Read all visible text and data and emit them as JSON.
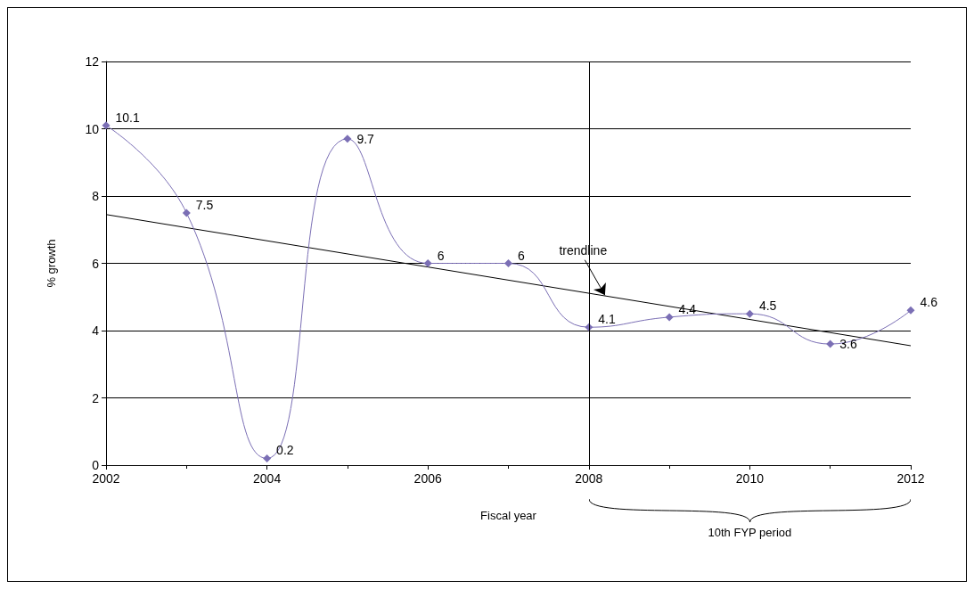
{
  "chart_data": {
    "type": "line",
    "xlabel": "Fiscal year",
    "ylabel": "% growth",
    "x": [
      2002,
      2003,
      2004,
      2005,
      2006,
      2007,
      2008,
      2009,
      2010,
      2011,
      2012
    ],
    "series": [
      {
        "color": "#7b6fb5",
        "values": [
          10.1,
          7.5,
          0.2,
          9.7,
          6,
          6,
          4.1,
          4.4,
          4.5,
          3.6,
          4.6
        ],
        "value_labels": [
          "10.1",
          "7.5",
          "0.2",
          "9.7",
          "6",
          "6",
          "4.1",
          "4.4",
          "4.5",
          "3.6",
          "4.6"
        ]
      },
      {
        "type": "line",
        "color": "#000000",
        "x": [
          2002,
          2012
        ],
        "values": [
          7.45,
          3.55
        ],
        "marker": "none",
        "value_labels": [
          null,
          null
        ]
      }
    ],
    "marker": "diamond",
    "grid": "y",
    "xlim": [
      2002,
      2012
    ],
    "xticks": [
      2002,
      2004,
      2006,
      2008,
      2010,
      2012
    ],
    "ylim": [
      0,
      12
    ],
    "yticks": [
      0,
      2,
      4,
      6,
      8,
      10,
      12
    ],
    "ref_lines": [
      {
        "axis": "x",
        "value": 2008,
        "color": "#000000"
      }
    ],
    "annotations": [
      {
        "text": "trendline",
        "x": 2008.2,
        "y": 5.05
      },
      "10th FYP period"
    ]
  }
}
